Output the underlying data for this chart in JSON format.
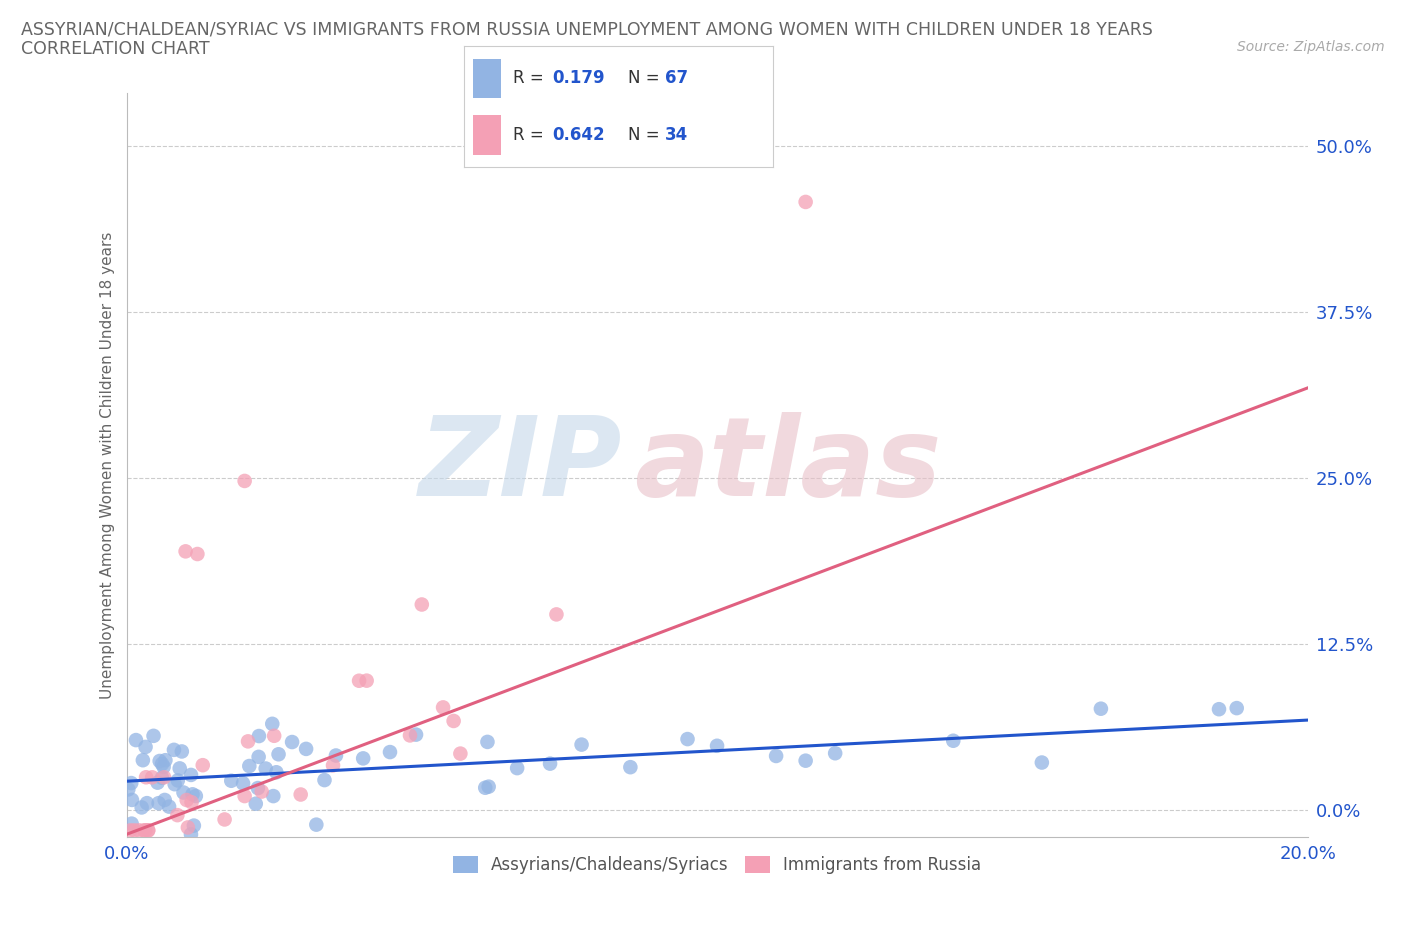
{
  "title_line1": "ASSYRIAN/CHALDEAN/SYRIAC VS IMMIGRANTS FROM RUSSIA UNEMPLOYMENT AMONG WOMEN WITH CHILDREN UNDER 18 YEARS",
  "title_line2": "CORRELATION CHART",
  "source_text": "Source: ZipAtlas.com",
  "ylabel": "Unemployment Among Women with Children Under 18 years",
  "xlim": [
    0.0,
    0.2
  ],
  "ylim": [
    -0.02,
    0.54
  ],
  "yticks": [
    0.0,
    0.125,
    0.25,
    0.375,
    0.5
  ],
  "ytick_labels": [
    "0.0%",
    "12.5%",
    "25.0%",
    "37.5%",
    "50.0%"
  ],
  "xticks": [
    0.0,
    0.05,
    0.1,
    0.15,
    0.2
  ],
  "xtick_labels": [
    "0.0%",
    "",
    "",
    "",
    "20.0%"
  ],
  "series1": {
    "name": "Assyrians/Chaldeans/Syriacs",
    "color": "#92b4e3",
    "line_color": "#2255cc",
    "R": 0.179,
    "N": 67,
    "line_x": [
      0.0,
      0.2
    ],
    "line_y": [
      0.022,
      0.068
    ]
  },
  "series2": {
    "name": "Immigrants from Russia",
    "color": "#f4a0b5",
    "line_color": "#e06080",
    "R": 0.642,
    "N": 34,
    "line_x": [
      0.0,
      0.2
    ],
    "line_y": [
      -0.018,
      0.318
    ]
  },
  "legend_color_blue": "#92b4e3",
  "legend_color_pink": "#f4a0b5",
  "legend_text_color": "#2255cc",
  "bg_color": "#ffffff",
  "grid_color": "#cccccc",
  "title_color": "#666666",
  "watermark_zip_color": "#c5d8ea",
  "watermark_atlas_color": "#e8c0c8"
}
